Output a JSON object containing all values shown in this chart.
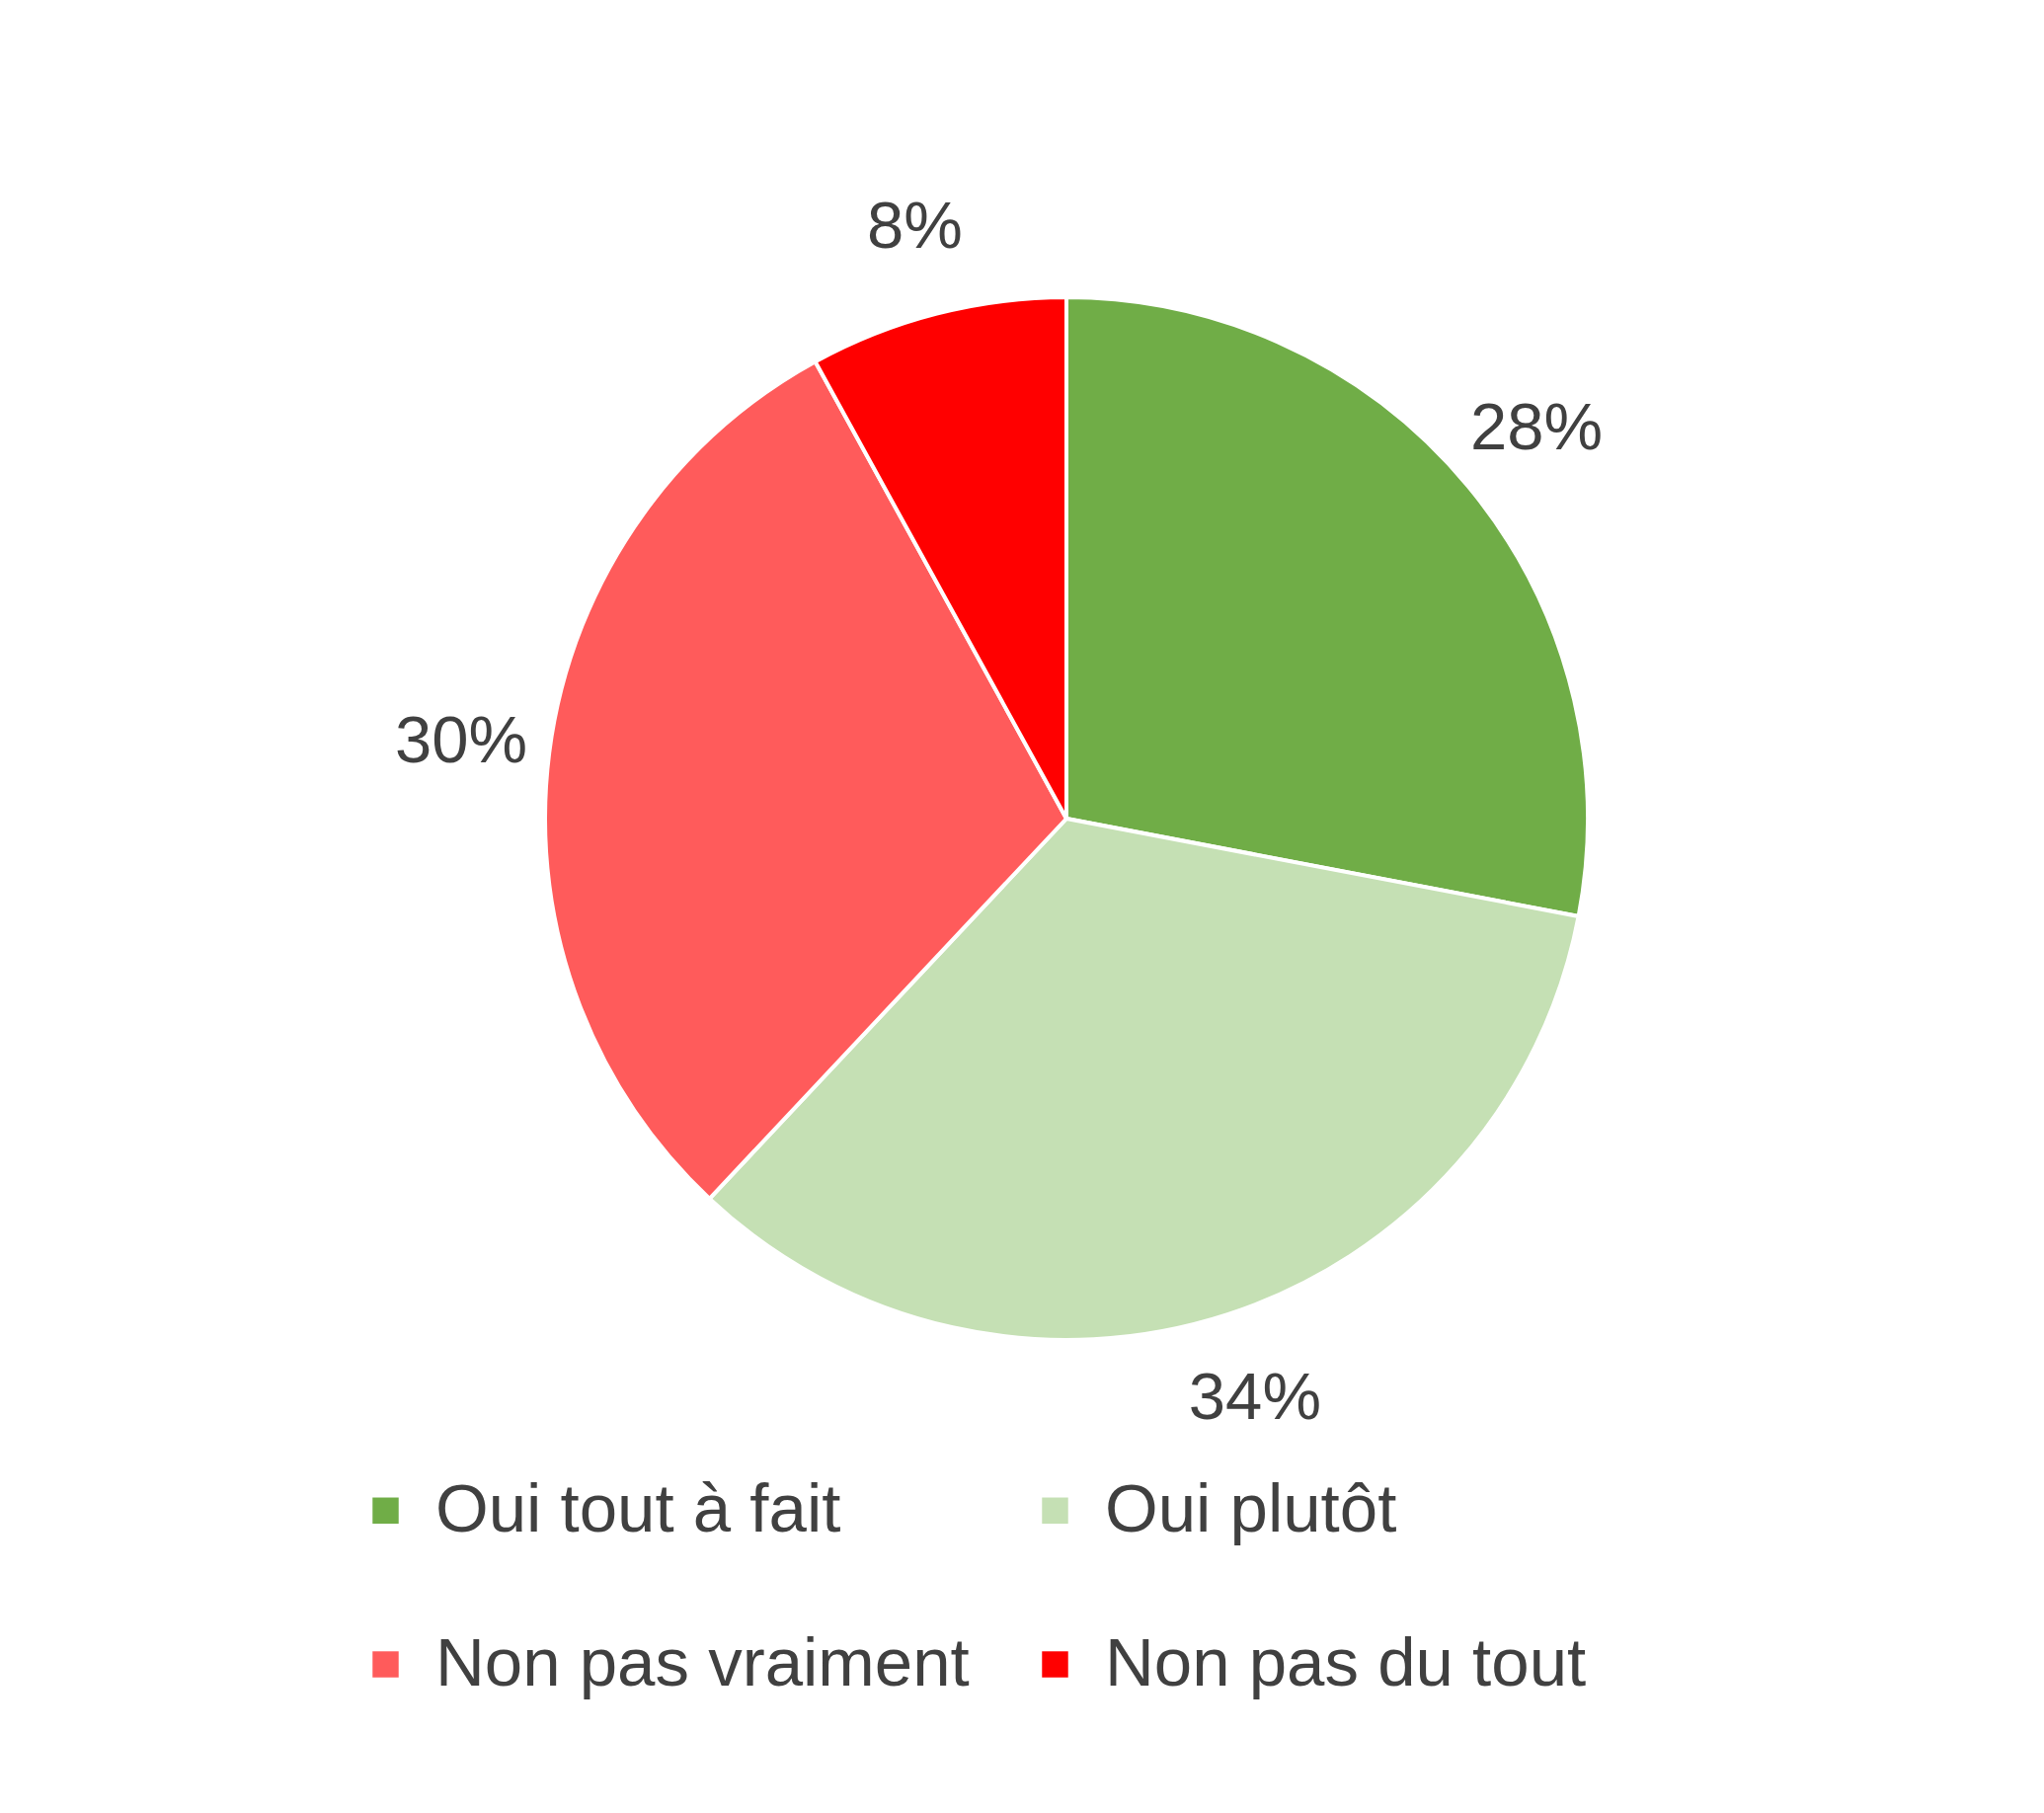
{
  "chart_data": {
    "type": "pie",
    "categories": [
      "Oui tout à fait",
      "Oui plutôt",
      "Non pas vraiment",
      "Non pas du tout"
    ],
    "values": [
      28,
      34,
      30,
      8
    ],
    "value_labels": [
      "28%",
      "34%",
      "30%",
      "8%"
    ],
    "colors": [
      "#70ad47",
      "#c5e0b4",
      "#ff5b5b",
      "#ff0000"
    ],
    "legend": "bottom"
  }
}
